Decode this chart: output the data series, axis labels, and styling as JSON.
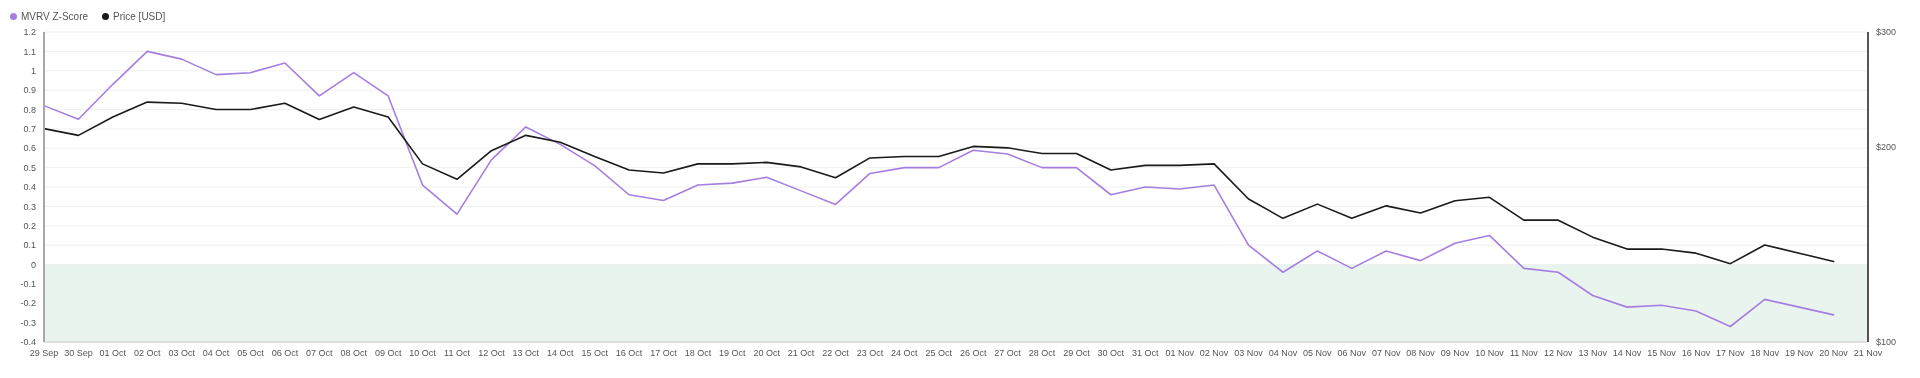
{
  "chart_data": {
    "type": "line",
    "categories": [
      "29 Sep",
      "30 Sep",
      "01 Oct",
      "02 Oct",
      "03 Oct",
      "04 Oct",
      "05 Oct",
      "06 Oct",
      "07 Oct",
      "08 Oct",
      "09 Oct",
      "10 Oct",
      "11 Oct",
      "12 Oct",
      "13 Oct",
      "14 Oct",
      "15 Oct",
      "16 Oct",
      "17 Oct",
      "18 Oct",
      "19 Oct",
      "20 Oct",
      "21 Oct",
      "22 Oct",
      "23 Oct",
      "24 Oct",
      "25 Oct",
      "26 Oct",
      "27 Oct",
      "28 Oct",
      "29 Oct",
      "30 Oct",
      "31 Oct",
      "01 Nov",
      "02 Nov",
      "03 Nov",
      "04 Nov",
      "05 Nov",
      "06 Nov",
      "07 Nov",
      "08 Nov",
      "09 Nov",
      "10 Nov",
      "11 Nov",
      "12 Nov",
      "13 Nov",
      "14 Nov",
      "15 Nov",
      "16 Nov",
      "17 Nov",
      "18 Nov",
      "19 Nov",
      "20 Nov",
      "21 Nov"
    ],
    "series": [
      {
        "name": "MVRV Z-Score",
        "color": "#a57ee0",
        "values": [
          0.82,
          0.75,
          0.93,
          1.1,
          1.06,
          0.98,
          0.99,
          1.04,
          0.87,
          0.99,
          0.87,
          0.41,
          0.26,
          0.54,
          0.71,
          0.62,
          0.51,
          0.36,
          0.33,
          0.41,
          0.42,
          0.45,
          0.38,
          0.31,
          0.47,
          0.5,
          0.5,
          0.59,
          0.57,
          0.5,
          0.5,
          0.36,
          0.4,
          0.39,
          0.41,
          0.1,
          -0.04,
          0.07,
          -0.02,
          0.07,
          0.02,
          0.11,
          0.15,
          -0.02,
          -0.04,
          -0.16,
          -0.22,
          -0.21,
          -0.24,
          -0.32,
          -0.18,
          -0.22,
          -0.26,
          null
        ]
      },
      {
        "name": "Price [USD]",
        "color": "#1a1a1a",
        "axis": "y2",
        "values": [
          213,
          208,
          222,
          234,
          233,
          228,
          228,
          233,
          220,
          230,
          222,
          188,
          178,
          197,
          208,
          203,
          193,
          184,
          182,
          188,
          188,
          189,
          186,
          179,
          192,
          193,
          193,
          200,
          199,
          195,
          195,
          184,
          187,
          187,
          188,
          166,
          155,
          163,
          155,
          162,
          158,
          165,
          167,
          154,
          154,
          145,
          139,
          139,
          137,
          132,
          141,
          137,
          133,
          null
        ]
      }
    ],
    "ylim": [
      -0.4,
      1.2
    ],
    "yticks": [
      -0.4,
      -0.3,
      -0.2,
      -0.1,
      0,
      0.1,
      0.2,
      0.3,
      0.4,
      0.5,
      0.6,
      0.7,
      0.8,
      0.9,
      1,
      1.1,
      1.2
    ],
    "y2lim": [
      100,
      300
    ],
    "y2ticks": [
      {
        "value": 100,
        "label": "$100"
      },
      {
        "value": 200,
        "label": "$200"
      },
      {
        "value": 300,
        "label": "$300"
      }
    ],
    "log": "y2",
    "bands": [
      {
        "axis": "y",
        "from": -0.4,
        "to": 0,
        "color": "#eaf4ef"
      }
    ],
    "grid": "y",
    "legend": "top left",
    "marker": "none",
    "line_style": "solid"
  }
}
